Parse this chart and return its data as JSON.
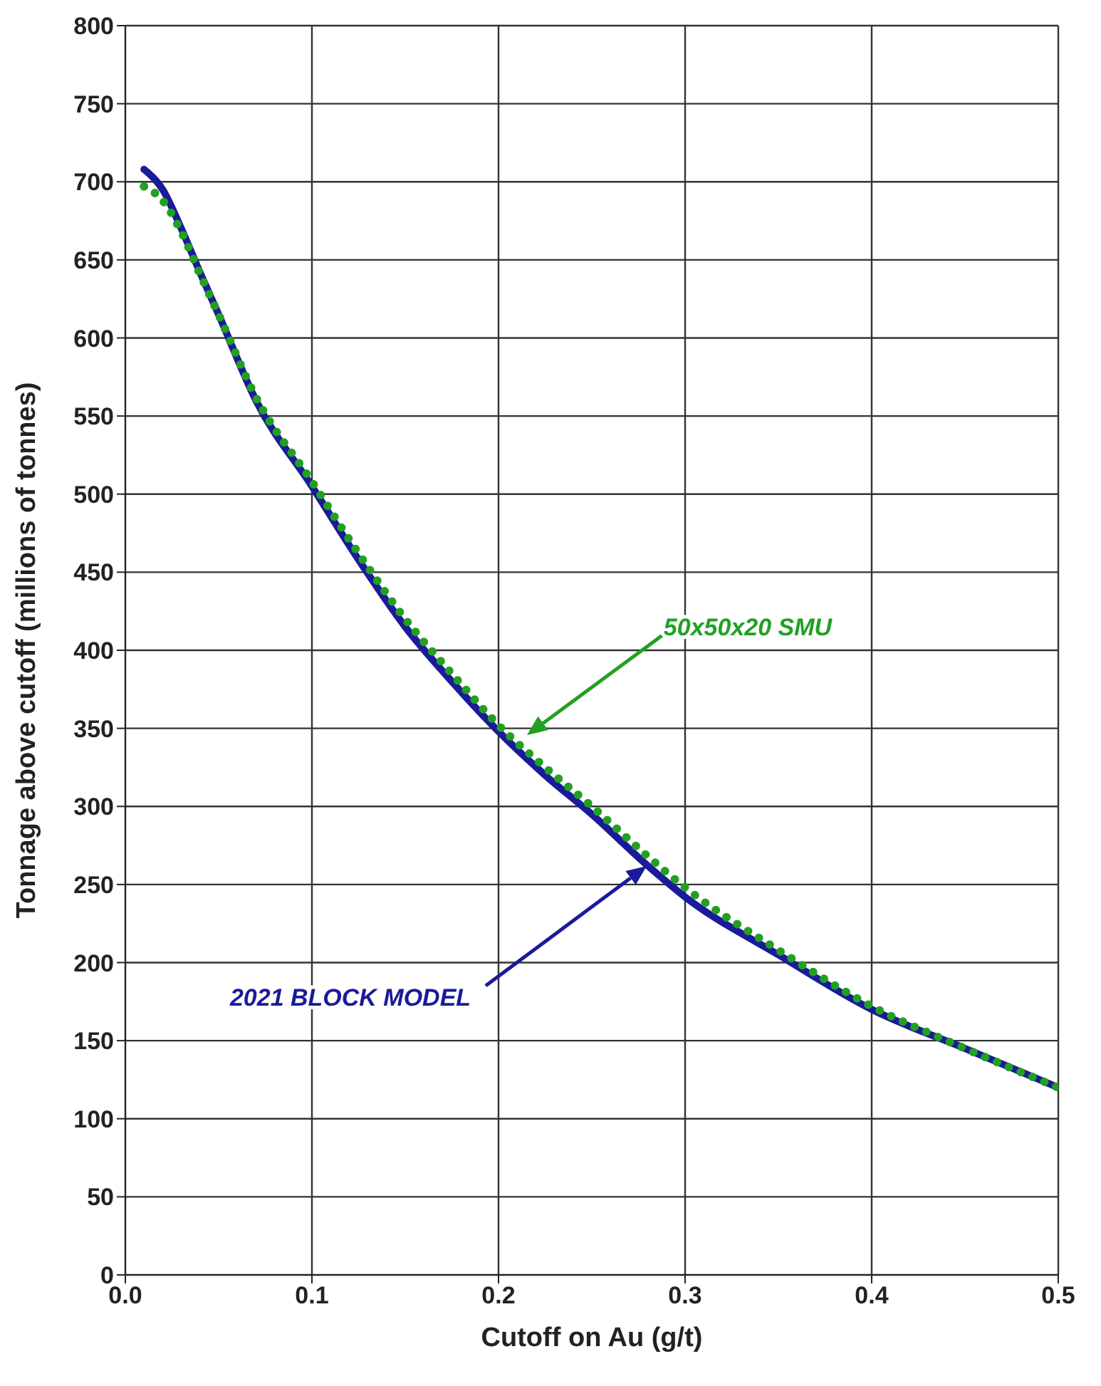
{
  "chart_data": {
    "type": "line",
    "xlabel": "Cutoff on Au (g/t)",
    "ylabel": "Tonnage above cutoff (millions of tonnes)",
    "xlim": [
      0,
      0.5
    ],
    "xticks": [
      {
        "value": 0,
        "label": "0.0"
      },
      0.1,
      0.2,
      0.3,
      0.4,
      0.5
    ],
    "ylim": [
      0,
      800
    ],
    "yticks": [
      0,
      50,
      100,
      150,
      200,
      250,
      300,
      350,
      400,
      450,
      500,
      550,
      600,
      650,
      700,
      750,
      800
    ],
    "grid": true,
    "marker": "none",
    "series": [
      {
        "color": "#1a1a9a",
        "line_style": "solid",
        "x": [
          0.01,
          0.02,
          0.03,
          0.04,
          0.05,
          0.07,
          0.1,
          0.125,
          0.15,
          0.175,
          0.2,
          0.225,
          0.25,
          0.28,
          0.3,
          0.35,
          0.4,
          0.45,
          0.5
        ],
        "values": [
          708,
          695,
          670,
          642,
          615,
          560,
          505,
          458,
          415,
          380,
          348,
          320,
          295,
          262,
          242,
          205,
          170,
          145,
          120
        ]
      },
      {
        "color": "#22a022",
        "line_style": "dotted",
        "x": [
          0.01,
          0.02,
          0.03,
          0.04,
          0.05,
          0.07,
          0.1,
          0.125,
          0.15,
          0.175,
          0.2,
          0.225,
          0.25,
          0.28,
          0.3,
          0.35,
          0.4,
          0.45,
          0.5
        ],
        "values": [
          697,
          688,
          668,
          641,
          615,
          562,
          508,
          462,
          420,
          385,
          352,
          325,
          300,
          268,
          248,
          208,
          172,
          145,
          120
        ]
      }
    ],
    "annotations": [
      "2021 BLOCK MODEL",
      "50x50x20 SMU"
    ]
  }
}
